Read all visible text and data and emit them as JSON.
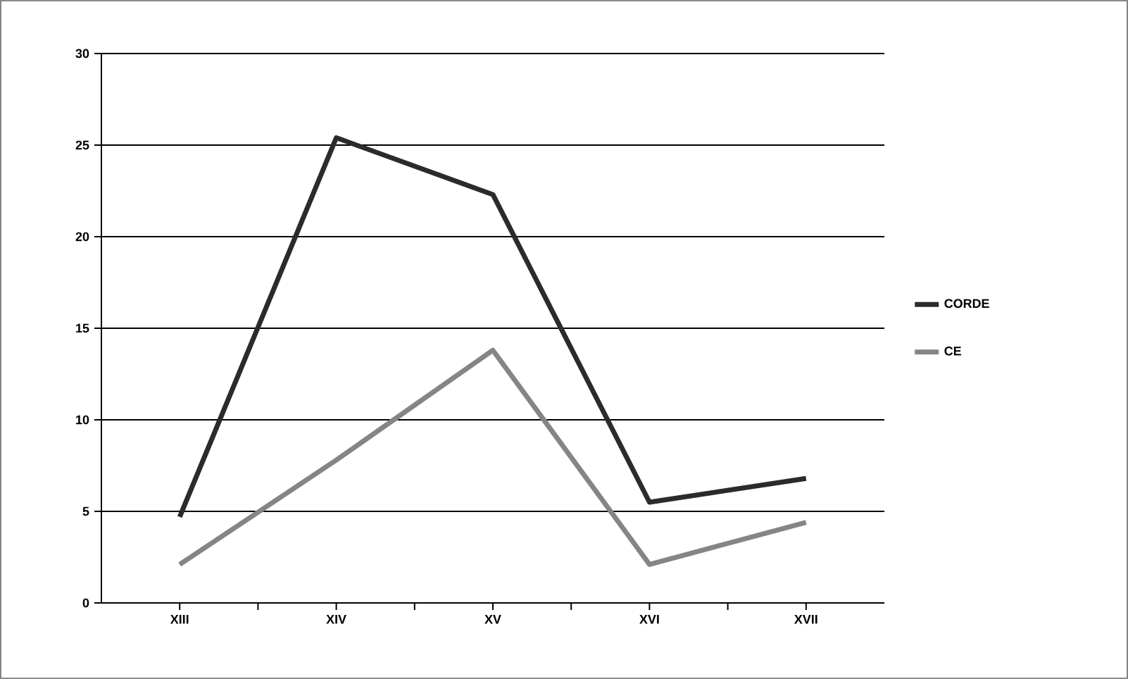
{
  "chart_data": {
    "type": "line",
    "categories": [
      "XIII",
      "XIV",
      "XV",
      "XVI",
      "XVII"
    ],
    "series": [
      {
        "name": "CORDE",
        "color": "#2b2b2b",
        "values": [
          4.7,
          25.4,
          22.3,
          5.5,
          6.8
        ]
      },
      {
        "name": "CE",
        "color": "#858585",
        "values": [
          2.1,
          7.8,
          13.8,
          2.1,
          4.4
        ]
      }
    ],
    "ylim": [
      0,
      30
    ],
    "yticks": [
      0,
      5,
      10,
      15,
      20,
      25,
      30
    ],
    "grid": "y",
    "legend": "right",
    "marker": "none",
    "line_style": "solid"
  }
}
